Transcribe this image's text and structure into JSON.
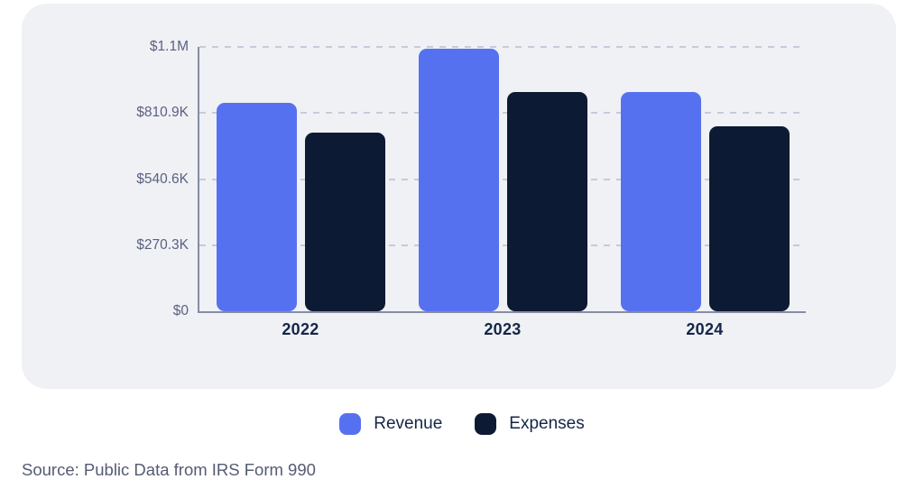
{
  "card": {
    "background": "#eff1f5"
  },
  "colors": {
    "revenue": "#5671f0",
    "expenses": "#0c1a33",
    "gridline": "#c7cada",
    "axis": "#878ca3",
    "ytick_text": "#5c6180",
    "xtick_text": "#152647",
    "source_text": "#555b73"
  },
  "legend": {
    "items": [
      {
        "label": "Revenue",
        "color": "#5671f0"
      },
      {
        "label": "Expenses",
        "color": "#0c1a33"
      }
    ]
  },
  "source": {
    "text": "Source: Public Data from IRS Form 990"
  },
  "chart_data": {
    "type": "bar",
    "title": "",
    "xlabel": "",
    "ylabel": "",
    "categories": [
      "2022",
      "2023",
      "2024"
    ],
    "series": [
      {
        "name": "Revenue",
        "color": "#5671f0",
        "values": [
          852000,
          1075000,
          895000
        ]
      },
      {
        "name": "Expenses",
        "color": "#0c1a33",
        "values": [
          730000,
          897000,
          758000
        ]
      }
    ],
    "ylim": [
      0,
      1081200
    ],
    "yticks": [
      {
        "value": 0,
        "label": "$0"
      },
      {
        "value": 270300,
        "label": "$270.3K"
      },
      {
        "value": 540600,
        "label": "$540.6K"
      },
      {
        "value": 810900,
        "label": "$810.9K"
      },
      {
        "value": 1081200,
        "label": "$1.1M"
      }
    ],
    "grid": "horizontal-dashed",
    "legend_position": "bottom"
  }
}
